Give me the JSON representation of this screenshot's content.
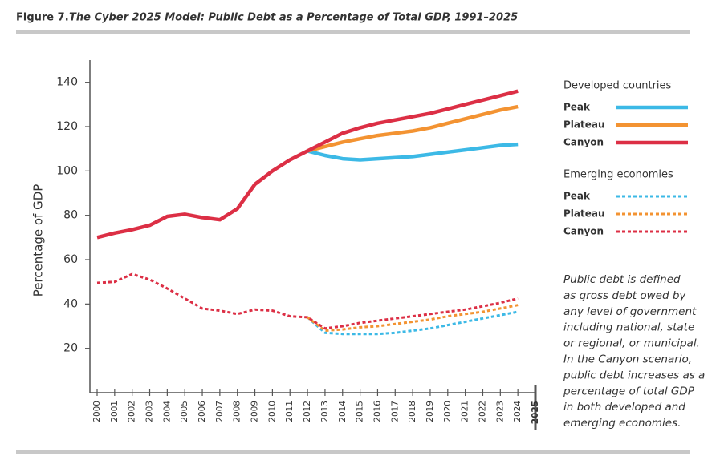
{
  "chart_data": {
    "type": "line",
    "figure_label": "Figure 7.",
    "title": "The Cyber 2025 Model: Public Debt as a Percentage of Total GDP, 1991–2025",
    "y_label": "Percentage of GDP",
    "categories": [
      "2000",
      "2001",
      "2002",
      "2003",
      "2004",
      "2005",
      "2006",
      "2007",
      "2008",
      "2009",
      "2010",
      "2011",
      "2012",
      "2013",
      "2014",
      "2015",
      "2016",
      "2017",
      "2018",
      "2019",
      "2020",
      "2021",
      "2022",
      "2023",
      "2024",
      "2025"
    ],
    "emphasis_index": 25,
    "ylim": [
      0,
      150
    ],
    "yticks": [
      20,
      40,
      60,
      80,
      100,
      120,
      140
    ],
    "legend_groups": [
      "Developed countries",
      "Emerging economies"
    ],
    "series": [
      {
        "name": "Peak",
        "color": "#3cb9e6",
        "group": 0,
        "dashed": false,
        "values": [
          null,
          null,
          null,
          null,
          null,
          null,
          null,
          null,
          null,
          null,
          null,
          null,
          109,
          107,
          105.5,
          105,
          105.5,
          106,
          106.5,
          107.5,
          108.5,
          109.5,
          110.5,
          111.5,
          112,
          null
        ]
      },
      {
        "name": "Plateau",
        "color": "#f39332",
        "group": 0,
        "dashed": false,
        "values": [
          null,
          null,
          null,
          null,
          null,
          null,
          null,
          null,
          null,
          null,
          null,
          null,
          109,
          111,
          113,
          114.5,
          116,
          117,
          118,
          119.5,
          121.5,
          123.5,
          125.5,
          127.5,
          129,
          null
        ]
      },
      {
        "name": "Canyon",
        "color": "#dc2f45",
        "group": 0,
        "dashed": false,
        "values": [
          70,
          72,
          73.5,
          75.5,
          79.5,
          80.5,
          79,
          78,
          83,
          94,
          100,
          105,
          109,
          113,
          117,
          119.5,
          121.5,
          123,
          124.5,
          126,
          128,
          130,
          132,
          134,
          136,
          null
        ]
      },
      {
        "name": "Peak",
        "color": "#3cb9e6",
        "group": 1,
        "dashed": true,
        "values": [
          null,
          null,
          null,
          null,
          null,
          null,
          null,
          null,
          null,
          null,
          null,
          null,
          34,
          27,
          26.5,
          26.5,
          26.5,
          27,
          28,
          29,
          30.5,
          32,
          33.5,
          35,
          36.5,
          null
        ]
      },
      {
        "name": "Plateau",
        "color": "#f39332",
        "group": 1,
        "dashed": true,
        "values": [
          null,
          null,
          null,
          null,
          null,
          null,
          null,
          null,
          null,
          null,
          null,
          null,
          34,
          28,
          28.5,
          29.5,
          30,
          31,
          32,
          33,
          34.5,
          35.5,
          36.5,
          38,
          39.5,
          null
        ]
      },
      {
        "name": "Canyon",
        "color": "#dc2f45",
        "group": 1,
        "dashed": true,
        "values": [
          49.5,
          50,
          53.5,
          51,
          47,
          42.5,
          38,
          37,
          35.5,
          37.5,
          37,
          34.5,
          34,
          29,
          30,
          31.5,
          32.5,
          33.5,
          34.5,
          35.5,
          36.5,
          37.5,
          39,
          40.5,
          42.5,
          null
        ]
      }
    ],
    "annotation_lines": [
      "Public debt is defined",
      "as gross debt owed by",
      "any level of government",
      "including national, state",
      "or regional, or municipal.",
      "In the Canyon scenario,",
      "public debt increases as a",
      "percentage of total GDP",
      "in both developed and",
      "emerging economies."
    ]
  }
}
